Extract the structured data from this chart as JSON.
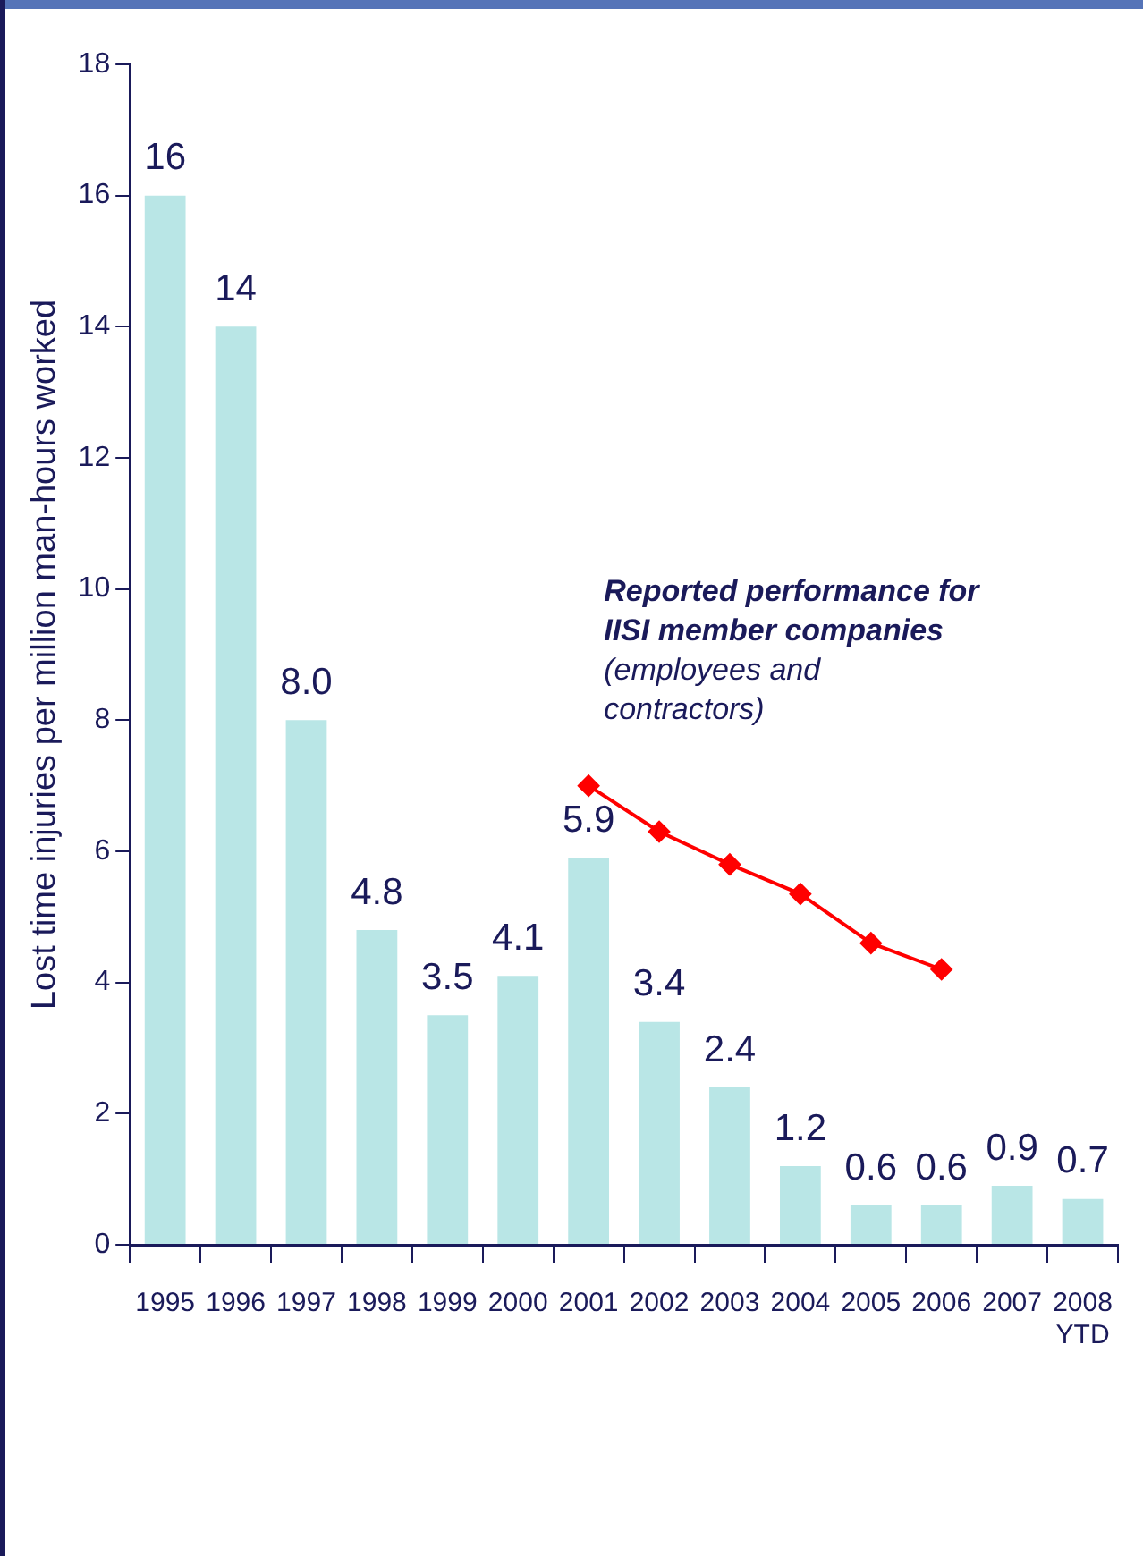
{
  "chart_data": {
    "type": "bar",
    "ylabel": "Lost time injuries per million man-hours worked",
    "categories": [
      "1995",
      "1996",
      "1997",
      "1998",
      "1999",
      "2000",
      "2001",
      "2002",
      "2003",
      "2004",
      "2005",
      "2006",
      "2007",
      "2008\nYTD"
    ],
    "series": [
      {
        "color": "#b9e6e6",
        "values": [
          16,
          14,
          8.0,
          4.8,
          3.5,
          4.1,
          5.9,
          3.4,
          2.4,
          1.2,
          0.6,
          0.6,
          0.9,
          0.7
        ],
        "value_labels": [
          "16",
          "14",
          "8.0",
          "4.8",
          "3.5",
          "4.1",
          "5.9",
          "3.4",
          "2.4",
          "1.2",
          "0.6",
          "0.6",
          "0.9",
          "0.7"
        ]
      },
      {
        "type": "line",
        "color": "#ff0000",
        "marker": "diamond",
        "values": [
          null,
          null,
          null,
          null,
          null,
          null,
          7.0,
          6.3,
          5.8,
          5.35,
          4.6,
          4.2,
          null,
          null
        ]
      }
    ],
    "annotations": [
      "Reported performance for IISI member companies",
      "(employees and contractors)"
    ],
    "ylim": [
      0,
      18
    ],
    "yticks": [
      0,
      2,
      4,
      6,
      8,
      10,
      12,
      14,
      16,
      18
    ],
    "grid": false,
    "legend": false
  }
}
